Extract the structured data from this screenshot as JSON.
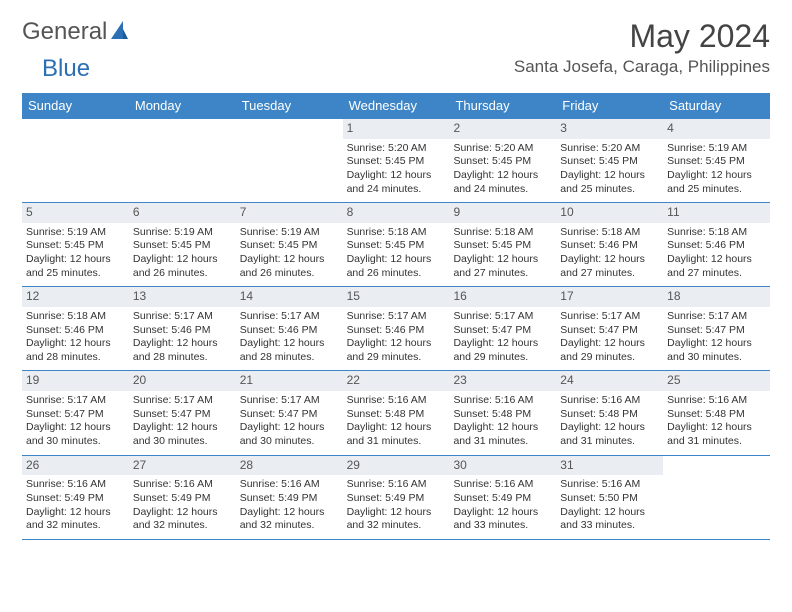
{
  "brand": {
    "name_part1": "General",
    "name_part2": "Blue",
    "color_general": "#555555",
    "color_blue": "#2b6fb5",
    "icon_color": "#2b6fb5"
  },
  "title": "May 2024",
  "location": "Santa Josefa, Caraga, Philippines",
  "colors": {
    "header_bg": "#3d85c6",
    "header_text": "#ffffff",
    "day_number_bg": "#eaeef2",
    "border": "#3d85c6",
    "text": "#333333"
  },
  "day_names": [
    "Sunday",
    "Monday",
    "Tuesday",
    "Wednesday",
    "Thursday",
    "Friday",
    "Saturday"
  ],
  "weeks": [
    [
      {
        "n": "",
        "sunrise": "",
        "sunset": "",
        "daylight": ""
      },
      {
        "n": "",
        "sunrise": "",
        "sunset": "",
        "daylight": ""
      },
      {
        "n": "",
        "sunrise": "",
        "sunset": "",
        "daylight": ""
      },
      {
        "n": "1",
        "sunrise": "Sunrise: 5:20 AM",
        "sunset": "Sunset: 5:45 PM",
        "daylight": "Daylight: 12 hours and 24 minutes."
      },
      {
        "n": "2",
        "sunrise": "Sunrise: 5:20 AM",
        "sunset": "Sunset: 5:45 PM",
        "daylight": "Daylight: 12 hours and 24 minutes."
      },
      {
        "n": "3",
        "sunrise": "Sunrise: 5:20 AM",
        "sunset": "Sunset: 5:45 PM",
        "daylight": "Daylight: 12 hours and 25 minutes."
      },
      {
        "n": "4",
        "sunrise": "Sunrise: 5:19 AM",
        "sunset": "Sunset: 5:45 PM",
        "daylight": "Daylight: 12 hours and 25 minutes."
      }
    ],
    [
      {
        "n": "5",
        "sunrise": "Sunrise: 5:19 AM",
        "sunset": "Sunset: 5:45 PM",
        "daylight": "Daylight: 12 hours and 25 minutes."
      },
      {
        "n": "6",
        "sunrise": "Sunrise: 5:19 AM",
        "sunset": "Sunset: 5:45 PM",
        "daylight": "Daylight: 12 hours and 26 minutes."
      },
      {
        "n": "7",
        "sunrise": "Sunrise: 5:19 AM",
        "sunset": "Sunset: 5:45 PM",
        "daylight": "Daylight: 12 hours and 26 minutes."
      },
      {
        "n": "8",
        "sunrise": "Sunrise: 5:18 AM",
        "sunset": "Sunset: 5:45 PM",
        "daylight": "Daylight: 12 hours and 26 minutes."
      },
      {
        "n": "9",
        "sunrise": "Sunrise: 5:18 AM",
        "sunset": "Sunset: 5:45 PM",
        "daylight": "Daylight: 12 hours and 27 minutes."
      },
      {
        "n": "10",
        "sunrise": "Sunrise: 5:18 AM",
        "sunset": "Sunset: 5:46 PM",
        "daylight": "Daylight: 12 hours and 27 minutes."
      },
      {
        "n": "11",
        "sunrise": "Sunrise: 5:18 AM",
        "sunset": "Sunset: 5:46 PM",
        "daylight": "Daylight: 12 hours and 27 minutes."
      }
    ],
    [
      {
        "n": "12",
        "sunrise": "Sunrise: 5:18 AM",
        "sunset": "Sunset: 5:46 PM",
        "daylight": "Daylight: 12 hours and 28 minutes."
      },
      {
        "n": "13",
        "sunrise": "Sunrise: 5:17 AM",
        "sunset": "Sunset: 5:46 PM",
        "daylight": "Daylight: 12 hours and 28 minutes."
      },
      {
        "n": "14",
        "sunrise": "Sunrise: 5:17 AM",
        "sunset": "Sunset: 5:46 PM",
        "daylight": "Daylight: 12 hours and 28 minutes."
      },
      {
        "n": "15",
        "sunrise": "Sunrise: 5:17 AM",
        "sunset": "Sunset: 5:46 PM",
        "daylight": "Daylight: 12 hours and 29 minutes."
      },
      {
        "n": "16",
        "sunrise": "Sunrise: 5:17 AM",
        "sunset": "Sunset: 5:47 PM",
        "daylight": "Daylight: 12 hours and 29 minutes."
      },
      {
        "n": "17",
        "sunrise": "Sunrise: 5:17 AM",
        "sunset": "Sunset: 5:47 PM",
        "daylight": "Daylight: 12 hours and 29 minutes."
      },
      {
        "n": "18",
        "sunrise": "Sunrise: 5:17 AM",
        "sunset": "Sunset: 5:47 PM",
        "daylight": "Daylight: 12 hours and 30 minutes."
      }
    ],
    [
      {
        "n": "19",
        "sunrise": "Sunrise: 5:17 AM",
        "sunset": "Sunset: 5:47 PM",
        "daylight": "Daylight: 12 hours and 30 minutes."
      },
      {
        "n": "20",
        "sunrise": "Sunrise: 5:17 AM",
        "sunset": "Sunset: 5:47 PM",
        "daylight": "Daylight: 12 hours and 30 minutes."
      },
      {
        "n": "21",
        "sunrise": "Sunrise: 5:17 AM",
        "sunset": "Sunset: 5:47 PM",
        "daylight": "Daylight: 12 hours and 30 minutes."
      },
      {
        "n": "22",
        "sunrise": "Sunrise: 5:16 AM",
        "sunset": "Sunset: 5:48 PM",
        "daylight": "Daylight: 12 hours and 31 minutes."
      },
      {
        "n": "23",
        "sunrise": "Sunrise: 5:16 AM",
        "sunset": "Sunset: 5:48 PM",
        "daylight": "Daylight: 12 hours and 31 minutes."
      },
      {
        "n": "24",
        "sunrise": "Sunrise: 5:16 AM",
        "sunset": "Sunset: 5:48 PM",
        "daylight": "Daylight: 12 hours and 31 minutes."
      },
      {
        "n": "25",
        "sunrise": "Sunrise: 5:16 AM",
        "sunset": "Sunset: 5:48 PM",
        "daylight": "Daylight: 12 hours and 31 minutes."
      }
    ],
    [
      {
        "n": "26",
        "sunrise": "Sunrise: 5:16 AM",
        "sunset": "Sunset: 5:49 PM",
        "daylight": "Daylight: 12 hours and 32 minutes."
      },
      {
        "n": "27",
        "sunrise": "Sunrise: 5:16 AM",
        "sunset": "Sunset: 5:49 PM",
        "daylight": "Daylight: 12 hours and 32 minutes."
      },
      {
        "n": "28",
        "sunrise": "Sunrise: 5:16 AM",
        "sunset": "Sunset: 5:49 PM",
        "daylight": "Daylight: 12 hours and 32 minutes."
      },
      {
        "n": "29",
        "sunrise": "Sunrise: 5:16 AM",
        "sunset": "Sunset: 5:49 PM",
        "daylight": "Daylight: 12 hours and 32 minutes."
      },
      {
        "n": "30",
        "sunrise": "Sunrise: 5:16 AM",
        "sunset": "Sunset: 5:49 PM",
        "daylight": "Daylight: 12 hours and 33 minutes."
      },
      {
        "n": "31",
        "sunrise": "Sunrise: 5:16 AM",
        "sunset": "Sunset: 5:50 PM",
        "daylight": "Daylight: 12 hours and 33 minutes."
      },
      {
        "n": "",
        "sunrise": "",
        "sunset": "",
        "daylight": ""
      }
    ]
  ]
}
